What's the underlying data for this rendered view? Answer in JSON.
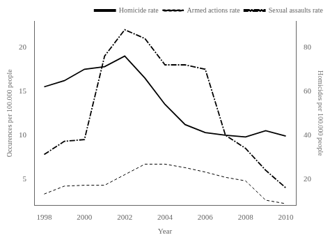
{
  "chart_data": {
    "type": "line",
    "xlabel": "Year",
    "ylabel": "Occurences per 100.000 people",
    "y2label": "Homicides per 100.000 people",
    "x": [
      1998,
      1999,
      2000,
      2001,
      2002,
      2003,
      2004,
      2005,
      2006,
      2007,
      2008,
      2009,
      2010
    ],
    "series": [
      {
        "name": "Homicide rate",
        "color": "#000000",
        "line_style": "solid",
        "values": [
          15.5,
          16.2,
          17.5,
          17.8,
          19.0,
          16.5,
          13.5,
          11.2,
          10.3,
          10.0,
          9.8,
          10.5,
          9.9
        ]
      },
      {
        "name": "Armed actions rate",
        "color": "#000000",
        "line_style": "dashed",
        "values": [
          3.3,
          4.2,
          4.3,
          4.3,
          5.5,
          6.7,
          6.7,
          6.3,
          5.8,
          5.2,
          4.8,
          2.6,
          2.2
        ]
      },
      {
        "name": "Sexual assaults rate",
        "color": "#000000",
        "line_style": "dashdot",
        "values": [
          7.8,
          9.3,
          9.5,
          19.0,
          22.0,
          21.0,
          18.0,
          18.0,
          17.5,
          10.0,
          8.5,
          6.0,
          4.0
        ]
      }
    ],
    "xlim": [
      1997.5,
      2010.5
    ],
    "xticks": [
      1998,
      2000,
      2002,
      2004,
      2006,
      2008,
      2010
    ],
    "ylim": [
      2,
      23
    ],
    "yticks": [
      5,
      10,
      15,
      20
    ],
    "y2lim": [
      8,
      92
    ],
    "y2ticks": [
      20,
      40,
      60,
      80
    ],
    "legend": "upper right",
    "grid": false
  }
}
